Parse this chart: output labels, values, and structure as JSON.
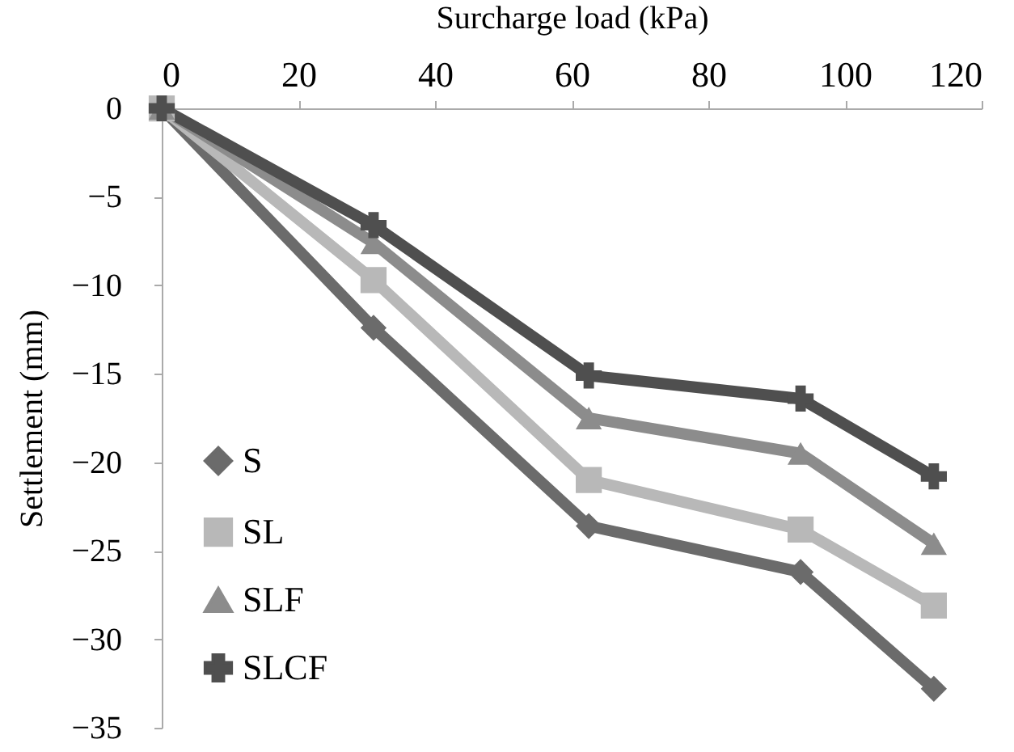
{
  "chart_data": {
    "type": "line",
    "xlabel": "Surcharge load (kPa)",
    "ylabel": "Settlement (mm)",
    "x": [
      0,
      31,
      62.5,
      93.5,
      113
    ],
    "series": [
      {
        "name": "S",
        "color": "#6b6b6b",
        "marker": "diamond",
        "values": [
          0,
          -12.4,
          -23.6,
          -26.2,
          -32.8
        ]
      },
      {
        "name": "SL",
        "color": "#b8b8b8",
        "marker": "square",
        "values": [
          0,
          -9.7,
          -21.0,
          -23.8,
          -28.1
        ]
      },
      {
        "name": "SLF",
        "color": "#8c8c8c",
        "marker": "triangle",
        "values": [
          0,
          -7.6,
          -17.5,
          -19.5,
          -24.6
        ]
      },
      {
        "name": "SLCF",
        "color": "#4f4f4f",
        "marker": "cross",
        "values": [
          0,
          -6.6,
          -15.1,
          -16.4,
          -20.8
        ]
      }
    ],
    "xlim": [
      0,
      120
    ],
    "xticks": [
      0,
      20,
      40,
      60,
      80,
      100,
      120
    ],
    "ylim": [
      -35,
      0
    ],
    "yticks": [
      -35,
      -30,
      -25,
      -20,
      -15,
      -10,
      -5,
      0
    ],
    "grid": false,
    "legend": "bottom left",
    "line_style": "solid"
  }
}
